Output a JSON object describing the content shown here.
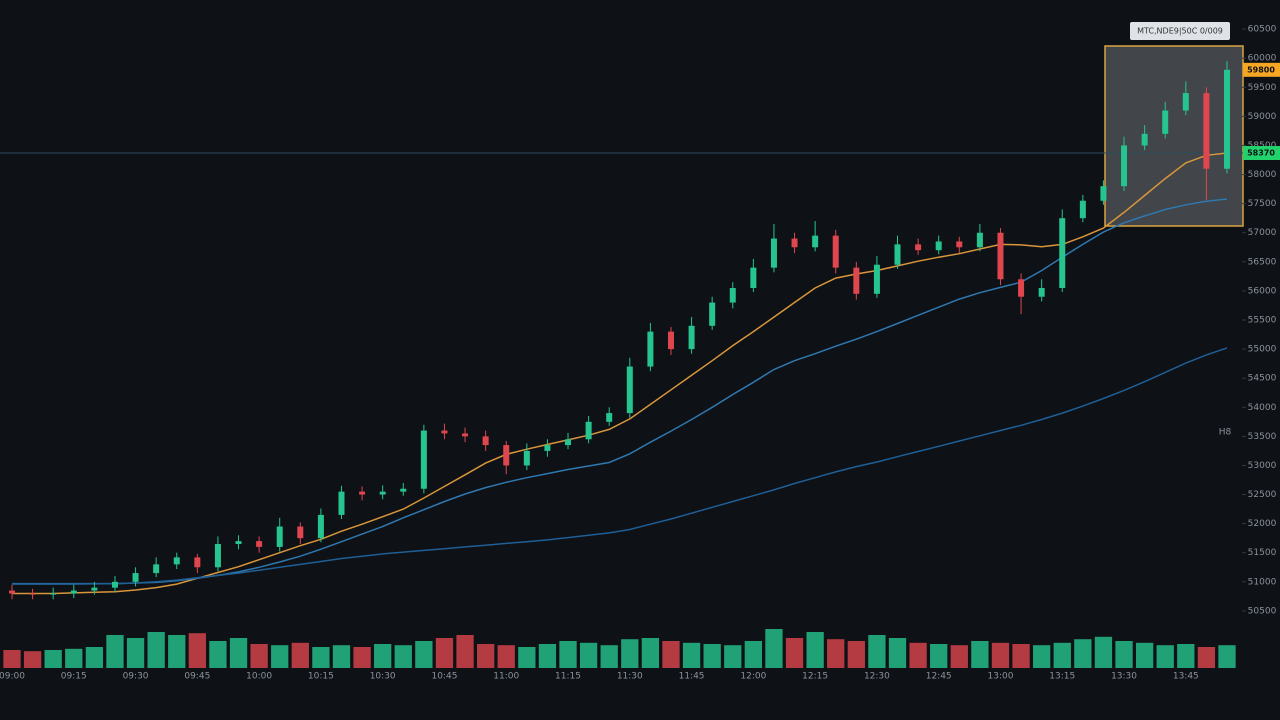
{
  "chart_data": {
    "type": "candlestick",
    "tooltip": "MTC,NDE9|50C 0/009",
    "annotation": "H8",
    "categories": [
      "09:00",
      null,
      null,
      "09:15",
      null,
      null,
      "09:30",
      null,
      null,
      "09:45",
      null,
      null,
      "10:00",
      null,
      null,
      "10:15",
      null,
      null,
      "10:30",
      null,
      null,
      "10:45",
      null,
      null,
      "11:00",
      null,
      null,
      "11:15",
      null,
      null,
      "11:30",
      null,
      null,
      "11:45",
      null,
      null,
      "12:00",
      null,
      null,
      "12:15",
      null,
      null,
      "12:30",
      null,
      null,
      "12:45",
      null,
      null,
      "13:00",
      null,
      null,
      "13:15",
      null,
      null,
      "13:30",
      null,
      null,
      "13:45",
      null,
      null
    ],
    "open": [
      50850,
      50800,
      50780,
      50800,
      50850,
      50900,
      51000,
      51150,
      51300,
      51420,
      51250,
      51650,
      51700,
      51600,
      51950,
      51750,
      52150,
      52550,
      52500,
      52550,
      52600,
      53600,
      53550,
      53500,
      53350,
      53000,
      53250,
      53350,
      53450,
      53750,
      53900,
      54700,
      55300,
      55000,
      55400,
      55800,
      56050,
      56400,
      56900,
      56750,
      56950,
      56400,
      55950,
      56450,
      56800,
      56700,
      56850,
      56750,
      57000,
      56200,
      55900,
      56050,
      57250,
      57550,
      57800,
      58500,
      58700,
      59100,
      59400,
      58100
    ],
    "high": [
      50950,
      50880,
      50900,
      50950,
      51000,
      51100,
      51250,
      51420,
      51500,
      51480,
      51780,
      51800,
      51780,
      52100,
      52020,
      52260,
      52650,
      52640,
      52660,
      52700,
      53700,
      53720,
      53650,
      53600,
      53420,
      53380,
      53450,
      53560,
      53850,
      54000,
      54850,
      55450,
      55380,
      55550,
      55900,
      56150,
      56550,
      57150,
      57000,
      57200,
      57050,
      56500,
      56600,
      56950,
      56900,
      56950,
      56930,
      57150,
      57080,
      56300,
      56200,
      57400,
      57650,
      57900,
      58650,
      58850,
      59250,
      59600,
      59500,
      59950
    ],
    "low": [
      50700,
      50700,
      50700,
      50720,
      50780,
      50820,
      50920,
      51080,
      51220,
      51150,
      51180,
      51560,
      51500,
      51520,
      51650,
      51680,
      52080,
      52400,
      52420,
      52480,
      52520,
      53450,
      53400,
      53250,
      52850,
      52920,
      53150,
      53280,
      53380,
      53680,
      53820,
      54620,
      54900,
      54920,
      55330,
      55700,
      55980,
      56320,
      56650,
      56680,
      56300,
      55850,
      55880,
      56380,
      56620,
      56630,
      56650,
      56680,
      56100,
      55600,
      55820,
      55980,
      57180,
      57480,
      57720,
      58420,
      58620,
      59020,
      57560,
      58020
    ],
    "close": [
      50800,
      50780,
      50800,
      50850,
      50900,
      51000,
      51150,
      51300,
      51420,
      51250,
      51650,
      51700,
      51600,
      51950,
      51750,
      52150,
      52550,
      52500,
      52550,
      52600,
      53600,
      53550,
      53500,
      53350,
      53000,
      53250,
      53350,
      53450,
      53750,
      53900,
      54700,
      55300,
      55000,
      55400,
      55800,
      56050,
      56400,
      56900,
      56750,
      56950,
      56400,
      55950,
      56450,
      56800,
      56700,
      56850,
      56750,
      57000,
      56200,
      55900,
      56050,
      57250,
      57550,
      57800,
      58500,
      58700,
      59100,
      59400,
      58100,
      59800
    ],
    "up_color": "#26c58f",
    "down_color": "#e0464e",
    "series": [
      {
        "color": "#d9963a",
        "values": [
          50800,
          50800,
          50800,
          50810,
          50820,
          50830,
          50860,
          50900,
          50960,
          51060,
          51160,
          51260,
          51380,
          51500,
          51620,
          51730,
          51870,
          51990,
          52120,
          52250,
          52440,
          52640,
          52840,
          53040,
          53190,
          53280,
          53360,
          53440,
          53520,
          53620,
          53800,
          54050,
          54300,
          54550,
          54800,
          55060,
          55300,
          55550,
          55800,
          56050,
          56220,
          56290,
          56350,
          56430,
          56510,
          56580,
          56640,
          56720,
          56800,
          56790,
          56760,
          56800,
          56930,
          57080,
          57350,
          57640,
          57930,
          58200,
          58330,
          58370
        ]
      },
      {
        "color": "#2f78b0",
        "values": [
          50970,
          50970,
          50970,
          50970,
          50970,
          50970,
          50980,
          50990,
          51020,
          51060,
          51110,
          51170,
          51250,
          51340,
          51440,
          51560,
          51690,
          51820,
          51950,
          52100,
          52240,
          52380,
          52510,
          52620,
          52710,
          52790,
          52860,
          52930,
          52990,
          53050,
          53200,
          53400,
          53590,
          53790,
          54000,
          54220,
          54430,
          54650,
          54800,
          54920,
          55050,
          55170,
          55300,
          55440,
          55580,
          55720,
          55860,
          55970,
          56060,
          56150,
          56350,
          56580,
          56800,
          57010,
          57170,
          57290,
          57400,
          57480,
          57540,
          57580
        ]
      },
      {
        "color": "#1f5f96",
        "values": [
          50960,
          50960,
          50960,
          50960,
          50965,
          50970,
          50980,
          51000,
          51030,
          51070,
          51110,
          51150,
          51200,
          51250,
          51300,
          51350,
          51400,
          51440,
          51480,
          51510,
          51540,
          51570,
          51600,
          51630,
          51660,
          51690,
          51720,
          51760,
          51800,
          51840,
          51900,
          51990,
          52080,
          52180,
          52280,
          52380,
          52480,
          52580,
          52690,
          52790,
          52890,
          52980,
          53060,
          53150,
          53240,
          53330,
          53420,
          53510,
          53600,
          53690,
          53790,
          53900,
          54020,
          54150,
          54290,
          54440,
          54600,
          54760,
          54900,
          55020
        ]
      }
    ],
    "volume": [
      30,
      28,
      30,
      32,
      35,
      55,
      50,
      60,
      55,
      58,
      45,
      50,
      40,
      38,
      42,
      35,
      38,
      35,
      40,
      38,
      45,
      50,
      55,
      40,
      38,
      35,
      40,
      45,
      42,
      38,
      48,
      50,
      45,
      42,
      40,
      38,
      45,
      65,
      50,
      60,
      48,
      45,
      55,
      50,
      42,
      40,
      38,
      45,
      42,
      40,
      38,
      42,
      48,
      52,
      45,
      42,
      38,
      40,
      35,
      38
    ],
    "vlim": [
      0,
      100
    ],
    "ylim": [
      50000,
      61000
    ],
    "yticks": [
      50500,
      51000,
      51500,
      52000,
      52500,
      53000,
      53500,
      54000,
      54500,
      55000,
      55500,
      56000,
      56500,
      57000,
      57500,
      58000,
      58500,
      59000,
      59500,
      60000,
      60500
    ],
    "price_markers": [
      {
        "value": 59800,
        "color": "#f5a623"
      },
      {
        "value": 58370,
        "color": "#22d36b"
      }
    ]
  }
}
